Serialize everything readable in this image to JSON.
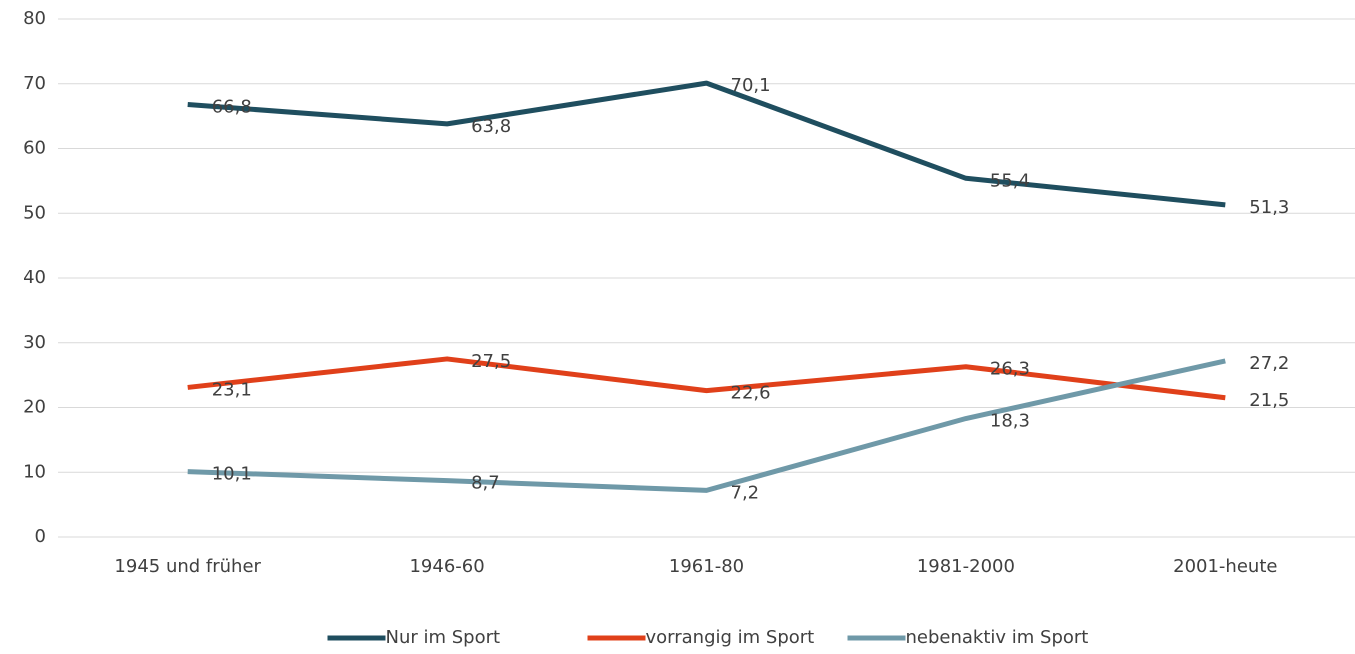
{
  "chart_data": {
    "type": "line",
    "categories": [
      "1945 und früher",
      "1946-60",
      "1961-80",
      "1981-2000",
      "2001-heute"
    ],
    "series": [
      {
        "name": "Nur im Sport",
        "color": "#1f4e5f",
        "values": [
          66.8,
          63.8,
          70.1,
          55.4,
          51.3
        ],
        "value_labels": [
          "66,8",
          "63,8",
          "70,1",
          "55,4",
          "51,3"
        ]
      },
      {
        "name": "vorrangig im Sport",
        "color": "#e0401a",
        "values": [
          23.1,
          27.5,
          22.6,
          26.3,
          21.5
        ],
        "value_labels": [
          "23,1",
          "27,5",
          "22,6",
          "26,3",
          "21,5"
        ]
      },
      {
        "name": "nebenaktiv im Sport",
        "color": "#6f99a8",
        "values": [
          10.1,
          8.7,
          7.2,
          18.3,
          27.2
        ],
        "value_labels": [
          "10,1",
          "8,7",
          "7,2",
          "18,3",
          "27,2"
        ]
      }
    ],
    "ylim": [
      0,
      80
    ],
    "yticks": [
      0,
      10,
      20,
      30,
      40,
      50,
      60,
      70,
      80
    ],
    "grid": true,
    "legend": "bottom"
  }
}
